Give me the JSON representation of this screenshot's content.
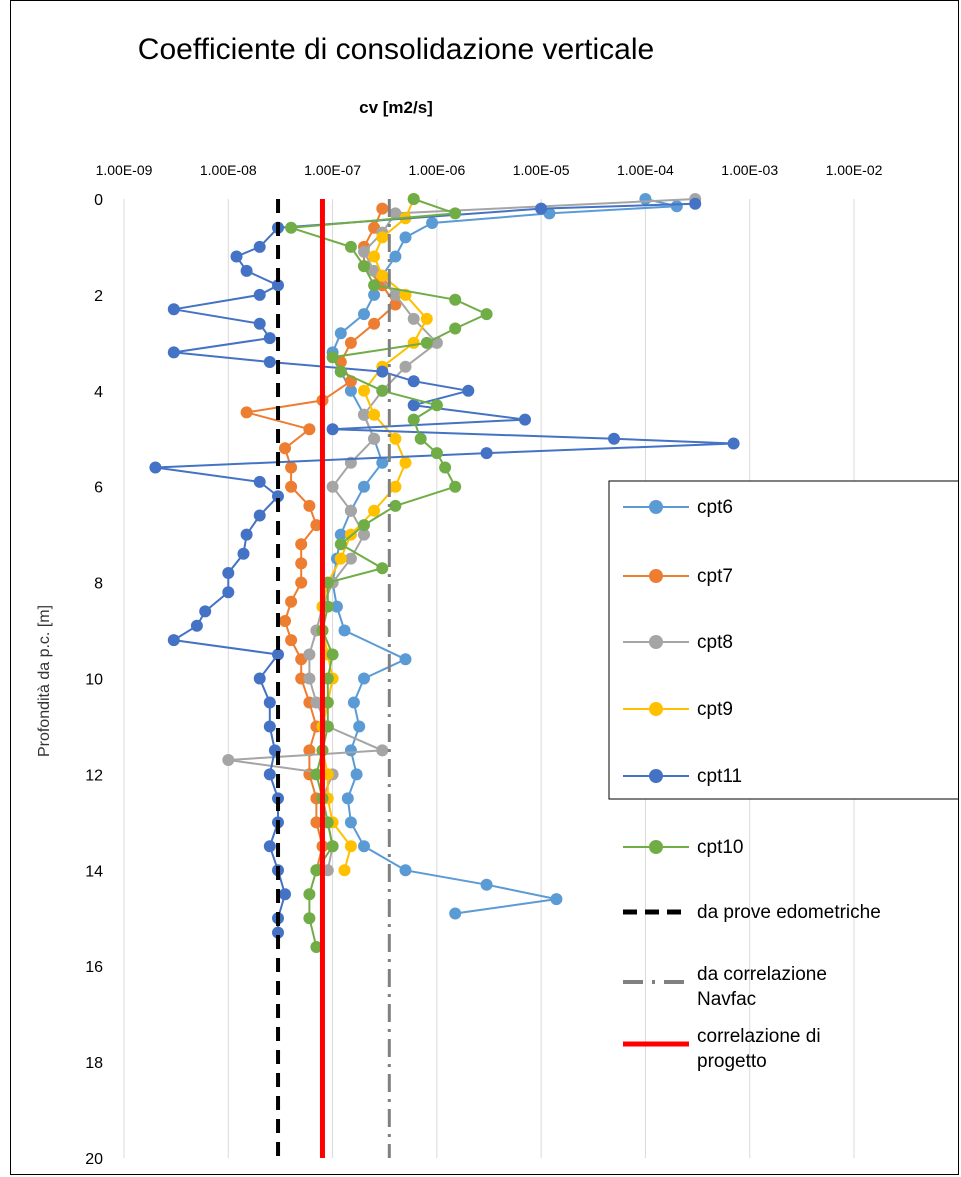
{
  "chart_data": {
    "type": "scatter",
    "title": "Coefficiente di consolidazione verticale",
    "xlabel": "cv [m2/s]",
    "ylabel": "Profondità da p.c. [m]",
    "xscale": "log",
    "xlim": [
      1e-09,
      0.01
    ],
    "ylim": [
      0,
      20
    ],
    "y_inverted": true,
    "x_axis_position": "top",
    "x_ticks": [
      "1.00E-09",
      "1.00E-08",
      "1.00E-07",
      "1.00E-06",
      "1.00E-05",
      "1.00E-04",
      "1.00E-03",
      "1.00E-02"
    ],
    "y_ticks": [
      "0",
      "2",
      "4",
      "6",
      "8",
      "10",
      "12",
      "14",
      "16",
      "18",
      "20"
    ],
    "grid": "vertical",
    "legend_position": "right",
    "series": [
      {
        "name": "cpt6",
        "color": "#5B9BD5",
        "kind": "points",
        "y": [
          0.0,
          0.15,
          0.3,
          0.5,
          0.8,
          1.2,
          1.6,
          2.0,
          2.4,
          2.8,
          3.2,
          3.6,
          4.0,
          4.5,
          5.0,
          5.5,
          6.0,
          6.5,
          7.0,
          7.5,
          8.0,
          8.5,
          9.0,
          9.6,
          10.0,
          10.5,
          11.0,
          11.5,
          12.0,
          12.5,
          13.0,
          13.5,
          14.0,
          14.3,
          14.6,
          14.9
        ],
        "x": [
          0.0001,
          0.0002,
          1.2e-05,
          9e-07,
          5e-07,
          4e-07,
          3e-07,
          2.5e-07,
          2e-07,
          1.2e-07,
          1e-07,
          1.2e-07,
          1.5e-07,
          2e-07,
          2.5e-07,
          3e-07,
          2e-07,
          1.5e-07,
          1.2e-07,
          1.1e-07,
          1e-07,
          1.1e-07,
          1.3e-07,
          5e-07,
          2e-07,
          1.6e-07,
          1.8e-07,
          1.5e-07,
          1.7e-07,
          1.4e-07,
          1.5e-07,
          2e-07,
          5e-07,
          3e-06,
          1.4e-05,
          1.5e-06
        ]
      },
      {
        "name": "cpt7",
        "color": "#ED7D31",
        "kind": "points",
        "y": [
          0.2,
          0.6,
          1.0,
          1.4,
          1.8,
          2.2,
          2.6,
          3.0,
          3.4,
          3.8,
          4.2,
          4.45,
          4.8,
          5.2,
          5.6,
          6.0,
          6.4,
          6.8,
          7.2,
          7.6,
          8.0,
          8.4,
          8.8,
          9.2,
          9.6,
          10.0,
          10.5,
          11.0,
          11.5,
          12.0,
          12.5,
          13.0,
          13.5,
          14.0
        ],
        "x": [
          3e-07,
          2.5e-07,
          2e-07,
          2e-07,
          3e-07,
          4e-07,
          2.5e-07,
          1.5e-07,
          1.2e-07,
          1.5e-07,
          8e-08,
          1.5e-08,
          6e-08,
          3.5e-08,
          4e-08,
          4e-08,
          6e-08,
          7e-08,
          5e-08,
          5e-08,
          5e-08,
          4e-08,
          3.5e-08,
          4e-08,
          5e-08,
          5e-08,
          6e-08,
          7e-08,
          6e-08,
          6e-08,
          7e-08,
          7e-08,
          8e-08,
          7e-08
        ]
      },
      {
        "name": "cpt8",
        "color": "#A5A5A5",
        "kind": "points",
        "y": [
          0.0,
          0.3,
          0.7,
          1.1,
          1.5,
          2.0,
          2.5,
          3.0,
          3.5,
          4.0,
          4.5,
          5.0,
          5.5,
          6.0,
          6.5,
          7.0,
          7.5,
          8.0,
          8.5,
          9.0,
          9.5,
          10.0,
          10.5,
          11.0,
          11.5,
          11.7,
          12.0,
          12.5,
          13.0,
          13.5,
          14.0
        ],
        "x": [
          0.0003,
          4e-07,
          3e-07,
          2e-07,
          2.5e-07,
          4e-07,
          6e-07,
          1e-06,
          5e-07,
          3e-07,
          2e-07,
          2.5e-07,
          1.5e-07,
          1e-07,
          1.5e-07,
          2e-07,
          1.5e-07,
          1e-07,
          8e-08,
          7e-08,
          6e-08,
          6e-08,
          7e-08,
          9e-08,
          3e-07,
          1e-08,
          1e-07,
          8e-08,
          9e-08,
          1e-07,
          9e-08
        ]
      },
      {
        "name": "cpt9",
        "color": "#FFC000",
        "kind": "points",
        "y": [
          0.0,
          0.4,
          0.8,
          1.2,
          1.6,
          2.0,
          2.5,
          3.0,
          3.5,
          4.0,
          4.5,
          5.0,
          5.5,
          6.0,
          6.5,
          7.0,
          7.5,
          8.0,
          8.5,
          9.0,
          9.5,
          10.0,
          10.5,
          11.0,
          11.5,
          12.0,
          12.5,
          13.0,
          13.5,
          14.0
        ],
        "x": [
          6e-07,
          5e-07,
          3e-07,
          2.5e-07,
          3e-07,
          5e-07,
          8e-07,
          6e-07,
          3e-07,
          2e-07,
          2.5e-07,
          4e-07,
          5e-07,
          4e-07,
          2.5e-07,
          1.5e-07,
          1.2e-07,
          9e-08,
          8e-08,
          8e-08,
          9e-08,
          1e-07,
          9e-08,
          8e-08,
          8e-08,
          9e-08,
          9e-08,
          1e-07,
          1.5e-07,
          1.3e-07
        ]
      },
      {
        "name": "cpt11",
        "color": "#4472C4",
        "kind": "points",
        "y": [
          0.1,
          0.2,
          0.6,
          1.0,
          1.2,
          1.5,
          1.8,
          2.0,
          2.3,
          2.6,
          2.9,
          3.2,
          3.4,
          3.6,
          3.8,
          4.0,
          4.3,
          4.6,
          4.8,
          5.0,
          5.1,
          5.3,
          5.6,
          5.9,
          6.2,
          6.6,
          7.0,
          7.4,
          7.8,
          8.2,
          8.6,
          8.9,
          9.2,
          9.5,
          10.0,
          10.5,
          11.0,
          11.5,
          12.0,
          12.5,
          13.0,
          13.5,
          14.0,
          14.5,
          15.0,
          15.3
        ],
        "x": [
          0.0003,
          1e-05,
          3e-08,
          2e-08,
          1.2e-08,
          1.5e-08,
          3e-08,
          2e-08,
          3e-09,
          2e-08,
          2.5e-08,
          3e-09,
          2.5e-08,
          3e-07,
          6e-07,
          2e-06,
          6e-07,
          7e-06,
          1e-07,
          5e-05,
          0.0007,
          3e-06,
          2e-09,
          2e-08,
          3e-08,
          2e-08,
          1.5e-08,
          1.4e-08,
          1e-08,
          1e-08,
          6e-09,
          5e-09,
          3e-09,
          3e-08,
          2e-08,
          2.5e-08,
          2.5e-08,
          2.8e-08,
          2.5e-08,
          3e-08,
          3e-08,
          2.5e-08,
          3e-08,
          3.5e-08,
          3e-08,
          3e-08
        ]
      },
      {
        "name": "cpt10",
        "color": "#70AD47",
        "kind": "points",
        "y": [
          0.0,
          0.3,
          0.6,
          1.0,
          1.4,
          1.8,
          2.1,
          2.4,
          2.7,
          3.0,
          3.3,
          3.6,
          4.0,
          4.3,
          4.6,
          5.0,
          5.3,
          5.6,
          6.0,
          6.4,
          6.8,
          7.2,
          7.7,
          8.0,
          8.5,
          9.0,
          9.5,
          10.0,
          10.5,
          11.0,
          11.5,
          12.0,
          12.5,
          13.0,
          13.5,
          14.0,
          14.5,
          15.0,
          15.6
        ],
        "x": [
          6e-07,
          1.5e-06,
          4e-08,
          1.5e-07,
          2e-07,
          2.5e-07,
          1.5e-06,
          3e-06,
          1.5e-06,
          8e-07,
          1e-07,
          1.2e-07,
          3e-07,
          1e-06,
          6e-07,
          7e-07,
          1e-06,
          1.2e-06,
          1.5e-06,
          4e-07,
          2e-07,
          1.2e-07,
          3e-07,
          9e-08,
          9e-08,
          8e-08,
          1e-07,
          9e-08,
          9e-08,
          9e-08,
          8e-08,
          7e-08,
          8e-08,
          9e-08,
          1e-07,
          7e-08,
          6e-08,
          6e-08,
          7e-08
        ]
      },
      {
        "name": "da prove edometriche",
        "color": "#000000",
        "kind": "vline",
        "x": 3e-08
      },
      {
        "name": "da correlazione Navfac",
        "color": "#808080",
        "kind": "vline",
        "x": 3.5e-07
      },
      {
        "name": "correlazione di progetto",
        "color": "#FF0000",
        "kind": "vline",
        "x": 8e-08
      }
    ]
  }
}
